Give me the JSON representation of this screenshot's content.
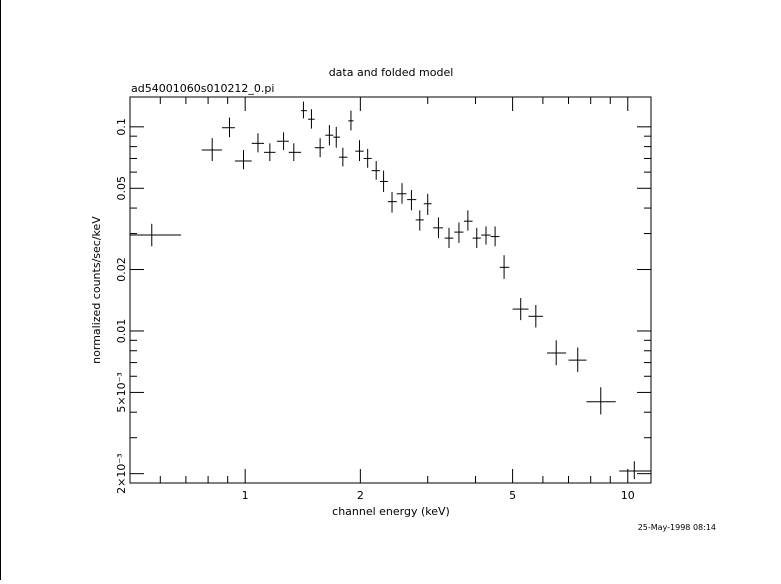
{
  "chart_data": {
    "type": "scatter",
    "title": "data and folded model",
    "subtitle": "ad54001060s010212_0.pi",
    "xlabel": "channel energy (keV)",
    "ylabel": "normalized counts/sec/keV",
    "xscale": "log",
    "yscale": "log",
    "xlim": [
      0.5,
      11.5
    ],
    "ylim": [
      0.0018,
      0.14
    ],
    "x_ticks": [
      {
        "v": 1,
        "label": "1"
      },
      {
        "v": 2,
        "label": "2"
      },
      {
        "v": 5,
        "label": "5"
      },
      {
        "v": 10,
        "label": "10"
      }
    ],
    "y_ticks": [
      {
        "v": 0.1,
        "label": "0.1"
      },
      {
        "v": 0.05,
        "label": "0.05"
      },
      {
        "v": 0.02,
        "label": "0.02"
      },
      {
        "v": 0.01,
        "label": "0.01"
      },
      {
        "v": 0.005,
        "label": "5×10⁻³"
      },
      {
        "v": 0.002,
        "label": "2×10⁻³"
      }
    ],
    "grid": false,
    "legend": "none",
    "series": [
      {
        "points": [
          {
            "x": 0.57,
            "y": 0.0295,
            "xlo": 0.5,
            "xhi": 0.68,
            "ylo": 0.026,
            "yhi": 0.0335
          },
          {
            "x": 0.82,
            "y": 0.077,
            "xlo": 0.77,
            "xhi": 0.87,
            "ylo": 0.068,
            "yhi": 0.088
          },
          {
            "x": 0.91,
            "y": 0.099,
            "xlo": 0.87,
            "xhi": 0.94,
            "ylo": 0.089,
            "yhi": 0.111
          },
          {
            "x": 0.99,
            "y": 0.068,
            "xlo": 0.94,
            "xhi": 1.04,
            "ylo": 0.062,
            "yhi": 0.077
          },
          {
            "x": 1.08,
            "y": 0.083,
            "xlo": 1.04,
            "xhi": 1.12,
            "ylo": 0.075,
            "yhi": 0.093
          },
          {
            "x": 1.16,
            "y": 0.075,
            "xlo": 1.12,
            "xhi": 1.2,
            "ylo": 0.068,
            "yhi": 0.083
          },
          {
            "x": 1.26,
            "y": 0.085,
            "xlo": 1.21,
            "xhi": 1.3,
            "ylo": 0.077,
            "yhi": 0.094
          },
          {
            "x": 1.34,
            "y": 0.075,
            "xlo": 1.3,
            "xhi": 1.4,
            "ylo": 0.068,
            "yhi": 0.083
          },
          {
            "x": 1.42,
            "y": 0.12,
            "xlo": 1.4,
            "xhi": 1.45,
            "ylo": 0.11,
            "yhi": 0.133
          },
          {
            "x": 1.49,
            "y": 0.109,
            "xlo": 1.46,
            "xhi": 1.52,
            "ylo": 0.098,
            "yhi": 0.122
          },
          {
            "x": 1.57,
            "y": 0.079,
            "xlo": 1.52,
            "xhi": 1.61,
            "ylo": 0.071,
            "yhi": 0.088
          },
          {
            "x": 1.66,
            "y": 0.091,
            "xlo": 1.62,
            "xhi": 1.7,
            "ylo": 0.081,
            "yhi": 0.102
          },
          {
            "x": 1.73,
            "y": 0.089,
            "xlo": 1.7,
            "xhi": 1.77,
            "ylo": 0.079,
            "yhi": 0.1
          },
          {
            "x": 1.8,
            "y": 0.071,
            "xlo": 1.76,
            "xhi": 1.85,
            "ylo": 0.064,
            "yhi": 0.079
          },
          {
            "x": 1.89,
            "y": 0.107,
            "xlo": 1.86,
            "xhi": 1.92,
            "ylo": 0.096,
            "yhi": 0.12
          },
          {
            "x": 1.99,
            "y": 0.076,
            "xlo": 1.94,
            "xhi": 2.04,
            "ylo": 0.068,
            "yhi": 0.086
          },
          {
            "x": 2.09,
            "y": 0.07,
            "xlo": 2.04,
            "xhi": 2.14,
            "ylo": 0.063,
            "yhi": 0.078
          },
          {
            "x": 2.2,
            "y": 0.061,
            "xlo": 2.14,
            "xhi": 2.25,
            "ylo": 0.055,
            "yhi": 0.068
          },
          {
            "x": 2.3,
            "y": 0.054,
            "xlo": 2.25,
            "xhi": 2.36,
            "ylo": 0.048,
            "yhi": 0.061
          },
          {
            "x": 2.42,
            "y": 0.043,
            "xlo": 2.36,
            "xhi": 2.49,
            "ylo": 0.038,
            "yhi": 0.048
          },
          {
            "x": 2.57,
            "y": 0.047,
            "xlo": 2.49,
            "xhi": 2.64,
            "ylo": 0.042,
            "yhi": 0.053
          },
          {
            "x": 2.72,
            "y": 0.044,
            "xlo": 2.65,
            "xhi": 2.8,
            "ylo": 0.039,
            "yhi": 0.049
          },
          {
            "x": 2.86,
            "y": 0.035,
            "xlo": 2.79,
            "xhi": 2.93,
            "ylo": 0.031,
            "yhi": 0.039
          },
          {
            "x": 3.0,
            "y": 0.042,
            "xlo": 2.93,
            "xhi": 3.07,
            "ylo": 0.037,
            "yhi": 0.047
          },
          {
            "x": 3.2,
            "y": 0.032,
            "xlo": 3.1,
            "xhi": 3.29,
            "ylo": 0.0285,
            "yhi": 0.036
          },
          {
            "x": 3.41,
            "y": 0.0285,
            "xlo": 3.32,
            "xhi": 3.5,
            "ylo": 0.0255,
            "yhi": 0.032
          },
          {
            "x": 3.62,
            "y": 0.0305,
            "xlo": 3.52,
            "xhi": 3.72,
            "ylo": 0.027,
            "yhi": 0.034
          },
          {
            "x": 3.82,
            "y": 0.0345,
            "xlo": 3.73,
            "xhi": 3.93,
            "ylo": 0.031,
            "yhi": 0.039
          },
          {
            "x": 4.03,
            "y": 0.0285,
            "xlo": 3.93,
            "xhi": 4.13,
            "ylo": 0.0255,
            "yhi": 0.032
          },
          {
            "x": 4.26,
            "y": 0.0295,
            "xlo": 4.14,
            "xhi": 4.38,
            "ylo": 0.0265,
            "yhi": 0.0325
          },
          {
            "x": 4.5,
            "y": 0.029,
            "xlo": 4.38,
            "xhi": 4.62,
            "ylo": 0.026,
            "yhi": 0.0325
          },
          {
            "x": 4.75,
            "y": 0.0205,
            "xlo": 4.63,
            "xhi": 4.9,
            "ylo": 0.018,
            "yhi": 0.0235
          },
          {
            "x": 5.25,
            "y": 0.0128,
            "xlo": 5.0,
            "xhi": 5.5,
            "ylo": 0.0113,
            "yhi": 0.0145
          },
          {
            "x": 5.75,
            "y": 0.0118,
            "xlo": 5.5,
            "xhi": 6.0,
            "ylo": 0.0104,
            "yhi": 0.0134
          },
          {
            "x": 6.5,
            "y": 0.0078,
            "xlo": 6.15,
            "xhi": 6.9,
            "ylo": 0.0068,
            "yhi": 0.009
          },
          {
            "x": 7.4,
            "y": 0.0072,
            "xlo": 7.0,
            "xhi": 7.8,
            "ylo": 0.0063,
            "yhi": 0.0083
          },
          {
            "x": 8.5,
            "y": 0.0045,
            "xlo": 7.8,
            "xhi": 9.3,
            "ylo": 0.0039,
            "yhi": 0.0053
          },
          {
            "x": 10.4,
            "y": 0.00206,
            "xlo": 9.5,
            "xhi": 11.5,
            "ylo": 0.00188,
            "yhi": 0.0023
          }
        ]
      }
    ],
    "footer": "25-May-1998 08:14"
  }
}
